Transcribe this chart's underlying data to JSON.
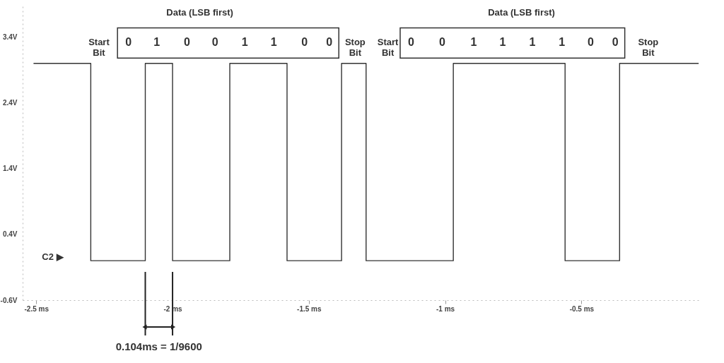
{
  "chart_data": {
    "type": "step",
    "x": [
      -2.51,
      -2.3,
      -2.1,
      -2.0,
      -1.79,
      -1.58,
      -1.38,
      -1.29,
      -0.97,
      -0.56,
      -0.36,
      -0.07
    ],
    "series": [
      {
        "color": "#333333",
        "values": [
          3,
          0,
          3,
          0,
          3,
          0,
          3,
          0,
          3,
          0,
          3,
          3
        ]
      }
    ],
    "xlim": [
      -2.55,
      -0.06
    ],
    "ylim": [
      -0.6,
      3.9
    ],
    "xticks": [
      {
        "value": -2.5,
        "label": "-2.5 ms"
      },
      {
        "value": -2,
        "label": "-2 ms"
      },
      {
        "value": -1.5,
        "label": "-1.5 ms"
      },
      {
        "value": -1,
        "label": "-1 ms"
      },
      {
        "value": -0.5,
        "label": "-0.5 ms"
      }
    ],
    "yticks": [
      {
        "value": 3.4,
        "label": "3.4V"
      },
      {
        "value": 2.4,
        "label": "2.4V"
      },
      {
        "value": 1.4,
        "label": "1.4V"
      },
      {
        "value": 0.4,
        "label": "0.4V"
      },
      {
        "value": -0.6,
        "label": "-0.6V"
      }
    ],
    "grid": false,
    "marker": "none",
    "line_style": "solid",
    "ref_lines": [
      {
        "axis": "x",
        "value": -2.1,
        "label": null
      },
      {
        "axis": "x",
        "value": -2.0,
        "label": null
      }
    ],
    "annotations": [
      "Data (LSB first)",
      "Start\nBit",
      "0",
      "1",
      "0",
      "0",
      "1",
      "1",
      "0",
      "0",
      "Stop\nBit",
      "Data (LSB first)",
      "Start\nBit",
      "0",
      "0",
      "1",
      "1",
      "1",
      "1",
      "0",
      "0",
      "Stop\nBit",
      "C2 ▶",
      "0.104ms = 1/9600"
    ]
  }
}
